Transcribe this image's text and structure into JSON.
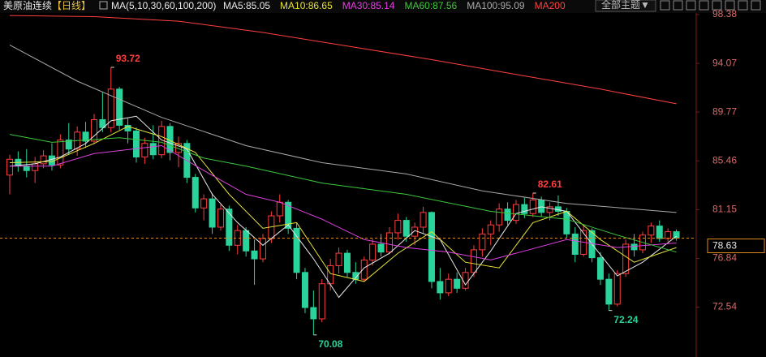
{
  "header": {
    "instrument": "美原油连续",
    "period": "【日线】",
    "indicator": "MA(5,10,30,60,100,200)",
    "theme_button": "全部主题▼"
  },
  "chart_data": {
    "type": "candlestick",
    "open": [
      84.2,
      85.6,
      85.0,
      84.6,
      85.2,
      85.9,
      85.1,
      87.3,
      86.5,
      88.0,
      87.2,
      89.1,
      88.4,
      91.8,
      88.6,
      88.1,
      85.8,
      87.0,
      86.0,
      88.5,
      86.2,
      87.0,
      84.0,
      81.3,
      82.1,
      79.6,
      81.2,
      78.0,
      79.3,
      77.5,
      76.8,
      78.6,
      80.6,
      81.8,
      79.5,
      75.6,
      72.5,
      71.5,
      74.6,
      76.2,
      77.3,
      75.6,
      75.0,
      76.7,
      78.1,
      77.4,
      79.1,
      80.2,
      78.8,
      79.6,
      80.9,
      74.8,
      73.8,
      75.0,
      74.2,
      75.6,
      77.6,
      79.0,
      79.8,
      81.2,
      80.2,
      81.6,
      80.8,
      82.0,
      80.9,
      81.4,
      81.0,
      79.0,
      77.2,
      79.3,
      76.9,
      75.0,
      72.8,
      75.5,
      78.1,
      77.6,
      78.9,
      79.7,
      78.6,
      79.2
    ],
    "high": [
      86.0,
      86.3,
      86.5,
      85.8,
      86.4,
      87.0,
      87.8,
      88.8,
      88.5,
      88.9,
      89.6,
      91.5,
      93.72,
      92.0,
      89.2,
      88.4,
      87.5,
      88.6,
      89.0,
      88.8,
      87.6,
      87.3,
      84.3,
      82.5,
      82.6,
      81.6,
      81.5,
      79.8,
      79.6,
      78.5,
      79.0,
      81.0,
      82.5,
      82.0,
      80.0,
      76.0,
      74.0,
      75.0,
      76.8,
      77.8,
      77.6,
      76.5,
      77.0,
      78.6,
      79.0,
      79.6,
      80.8,
      80.5,
      80.0,
      81.4,
      81.0,
      76.0,
      75.5,
      75.6,
      76.0,
      78.0,
      79.5,
      80.2,
      81.7,
      81.8,
      82.0,
      82.2,
      82.61,
      82.3,
      81.8,
      82.4,
      81.3,
      79.6,
      79.8,
      79.5,
      77.4,
      75.5,
      75.8,
      78.5,
      79.0,
      79.2,
      80.0,
      80.2,
      79.5,
      79.4
    ],
    "low": [
      82.5,
      84.5,
      84.0,
      83.5,
      84.8,
      84.6,
      84.8,
      86.0,
      85.9,
      86.6,
      86.9,
      88.0,
      88.0,
      88.2,
      87.0,
      85.3,
      85.2,
      85.6,
      85.7,
      85.5,
      84.9,
      83.5,
      80.9,
      80.2,
      79.0,
      79.3,
      77.5,
      77.2,
      77.0,
      74.5,
      76.5,
      78.2,
      80.0,
      79.0,
      75.0,
      72.0,
      70.08,
      71.2,
      74.0,
      75.5,
      75.2,
      74.6,
      74.8,
      76.2,
      77.0,
      77.2,
      78.5,
      78.3,
      78.0,
      79.0,
      74.2,
      73.2,
      73.5,
      73.8,
      74.0,
      75.2,
      77.0,
      78.0,
      79.2,
      79.8,
      79.9,
      80.4,
      80.5,
      80.5,
      80.2,
      80.6,
      78.6,
      76.5,
      77.0,
      76.5,
      74.5,
      72.24,
      72.6,
      75.2,
      77.0,
      77.3,
      78.2,
      78.3,
      78.3,
      78.4
    ],
    "close": [
      85.6,
      85.0,
      84.6,
      85.2,
      85.9,
      85.1,
      87.3,
      86.5,
      88.0,
      87.2,
      89.1,
      88.4,
      91.8,
      88.6,
      88.1,
      85.8,
      87.0,
      86.0,
      88.5,
      86.2,
      87.0,
      84.0,
      81.3,
      82.1,
      79.6,
      81.2,
      78.0,
      79.3,
      77.5,
      76.8,
      78.6,
      80.6,
      81.8,
      79.5,
      75.6,
      72.5,
      71.5,
      74.6,
      76.2,
      77.3,
      75.6,
      75.0,
      76.7,
      78.1,
      77.4,
      79.1,
      80.2,
      78.8,
      79.6,
      80.9,
      74.8,
      73.8,
      75.0,
      74.2,
      75.6,
      77.6,
      79.0,
      79.8,
      81.2,
      80.2,
      81.6,
      80.8,
      82.0,
      80.9,
      81.4,
      81.0,
      79.0,
      77.2,
      79.3,
      76.9,
      75.0,
      72.8,
      75.5,
      78.1,
      77.6,
      78.9,
      79.7,
      78.6,
      79.2,
      78.63
    ],
    "up_color": "#ff3d3d",
    "down_color": "#2bd39c",
    "series": [
      {
        "name": "MA5:85.05",
        "color": "#e8e8e8",
        "x": [
          0,
          3,
          6,
          9,
          12,
          15,
          18,
          21,
          24,
          27,
          30,
          33,
          36,
          39,
          42,
          45,
          48,
          51,
          54,
          57,
          60,
          63,
          66,
          69,
          72,
          75,
          79
        ],
        "values": [
          85.0,
          85.2,
          85.8,
          87.0,
          89.0,
          89.4,
          87.3,
          86.5,
          82.5,
          80.0,
          78.0,
          79.8,
          76.8,
          73.4,
          76.0,
          77.3,
          79.3,
          78.5,
          74.5,
          77.5,
          80.8,
          81.4,
          81.0,
          78.1,
          75.3,
          76.5,
          78.8
        ]
      },
      {
        "name": "MA10:86.65",
        "color": "#e6e23a",
        "x": [
          0,
          5,
          10,
          14,
          18,
          22,
          26,
          30,
          34,
          38,
          42,
          46,
          50,
          54,
          58,
          62,
          66,
          70,
          74,
          79
        ],
        "values": [
          85.3,
          85.4,
          87.0,
          88.5,
          87.6,
          86.2,
          82.5,
          79.5,
          80.0,
          75.5,
          74.8,
          77.3,
          79.2,
          76.5,
          76.0,
          80.0,
          81.0,
          78.5,
          76.5,
          77.8
        ]
      },
      {
        "name": "MA30:85.14",
        "color": "#e040e0",
        "x": [
          0,
          5,
          10,
          18,
          23,
          28,
          32,
          37,
          42,
          47,
          52,
          57,
          61,
          66,
          72,
          79
        ],
        "values": [
          85.0,
          85.0,
          86.1,
          86.8,
          84.6,
          82.5,
          81.8,
          80.3,
          78.5,
          77.8,
          77.4,
          76.7,
          77.5,
          78.5,
          77.8,
          78.2
        ]
      },
      {
        "name": "MA60:87.56",
        "color": "#3cc83c",
        "x": [
          0,
          5,
          13,
          18,
          23,
          28,
          37,
          47,
          57,
          66,
          72,
          79
        ],
        "values": [
          87.8,
          87.1,
          87.5,
          87.1,
          85.7,
          85.0,
          83.5,
          82.5,
          81.0,
          80.3,
          78.9,
          77.4
        ]
      },
      {
        "name": "MA100:95.09",
        "color": "#a8a8a8",
        "x": [
          0,
          8,
          18,
          28,
          37,
          47,
          56,
          66,
          79
        ],
        "values": [
          95.7,
          92.5,
          89.3,
          86.8,
          85.3,
          84.3,
          82.8,
          81.7,
          80.9
        ]
      },
      {
        "name": "MA200",
        "color": "#ff4040",
        "x": [
          0,
          10,
          20,
          30,
          40,
          50,
          60,
          70,
          79
        ],
        "values": [
          98.3,
          98.2,
          97.8,
          96.8,
          95.6,
          94.4,
          93.1,
          91.8,
          90.5
        ]
      }
    ],
    "annotations": [
      {
        "x": 12,
        "value": 93.72
      },
      {
        "x": 36,
        "value": 70.08
      },
      {
        "x": 62,
        "value": 82.61
      },
      {
        "x": 71,
        "value": 72.24
      }
    ],
    "current_price": 78.63,
    "xlim": [
      -1.15,
      81.35
    ],
    "ylim": [
      68.13,
      99.67
    ],
    "yticks": [
      98.38,
      94.07,
      89.77,
      85.46,
      81.15,
      76.84,
      72.54
    ]
  }
}
